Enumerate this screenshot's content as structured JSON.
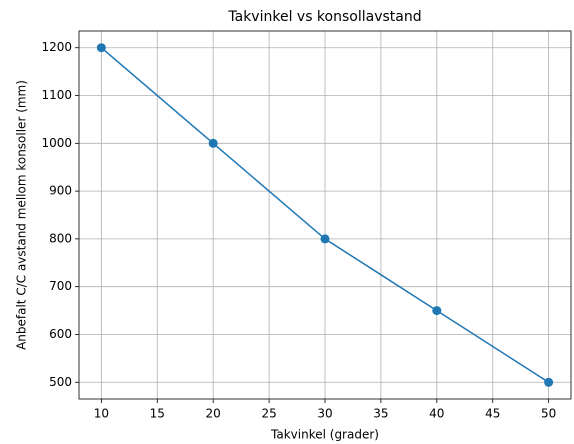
{
  "chart_data": {
    "type": "line",
    "title": "Takvinkel vs konsollavstand",
    "xlabel": "Takvinkel (grader)",
    "ylabel": "Anbefalt C/C avstand mellom konsoller (mm)",
    "x": [
      10,
      20,
      30,
      40,
      50
    ],
    "series": [
      {
        "name": "Anbefalt C/C",
        "color": "#1f77b4",
        "values": [
          1200,
          1000,
          800,
          650,
          500
        ]
      }
    ],
    "xlim": [
      8,
      52
    ],
    "xticks": [
      10,
      15,
      20,
      25,
      30,
      35,
      40,
      45,
      50
    ],
    "ylim": [
      465,
      1235
    ],
    "yticks": [
      500,
      600,
      700,
      800,
      900,
      1000,
      1100,
      1200
    ],
    "grid": true,
    "marker": "circle"
  }
}
